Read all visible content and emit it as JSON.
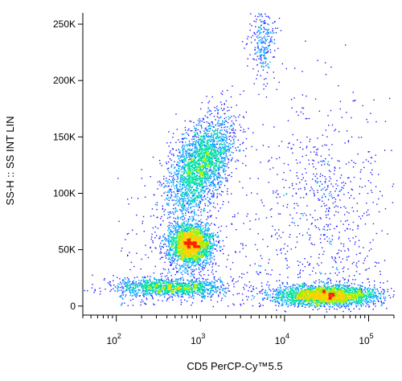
{
  "chart_data": {
    "type": "scatter",
    "title": "",
    "xlabel": "CD5 PerCP-Cy™5.5",
    "ylabel": "SS-H :: SS INT LIN",
    "x_scale": "log",
    "xlim": [
      40,
      200000
    ],
    "ylim": [
      -8000,
      260000
    ],
    "grid": false,
    "legend": "none",
    "x_ticks": [
      {
        "value": 100,
        "base": "10",
        "exp": "2"
      },
      {
        "value": 1000,
        "base": "10",
        "exp": "3"
      },
      {
        "value": 10000,
        "base": "10",
        "exp": "4"
      },
      {
        "value": 100000,
        "base": "10",
        "exp": "5"
      }
    ],
    "y_ticks": [
      {
        "value": 0,
        "label": "0"
      },
      {
        "value": 50000,
        "label": "50K"
      },
      {
        "value": 100000,
        "label": "100K"
      },
      {
        "value": 150000,
        "label": "150K"
      },
      {
        "value": 200000,
        "label": "200K"
      },
      {
        "value": 250000,
        "label": "250K"
      }
    ],
    "color_scale": [
      "#1a1aff",
      "#00a0ff",
      "#00e0a0",
      "#a0f000",
      "#ffd000",
      "#ff2000"
    ],
    "populations": [
      {
        "name": "",
        "x_center": 1000,
        "y_center": 125000,
        "x_spread_decades": 0.17,
        "y_spread": 22000,
        "tilt": 0.55,
        "density": "high"
      },
      {
        "name": "",
        "x_center": 750,
        "y_center": 55000,
        "x_spread_decades": 0.13,
        "y_spread": 9000,
        "tilt": 0.0,
        "density": "high"
      },
      {
        "name": "",
        "x_center": 450,
        "y_center": 17000,
        "x_spread_decades": 0.33,
        "y_spread": 4000,
        "tilt": 0.0,
        "density": "medium"
      },
      {
        "name": "",
        "x_center": 30000,
        "y_center": 10000,
        "x_spread_decades": 0.3,
        "y_spread": 4500,
        "tilt": 0.0,
        "density": "high"
      },
      {
        "name": "",
        "x_center": 5500,
        "y_center": 235000,
        "x_spread_decades": 0.08,
        "y_spread": 15000,
        "tilt": 0.0,
        "density": "low"
      },
      {
        "name": "",
        "x_center": 30000,
        "y_center": 100000,
        "x_spread_decades": 0.35,
        "y_spread": 45000,
        "tilt": 0.0,
        "density": "sparse"
      }
    ]
  }
}
